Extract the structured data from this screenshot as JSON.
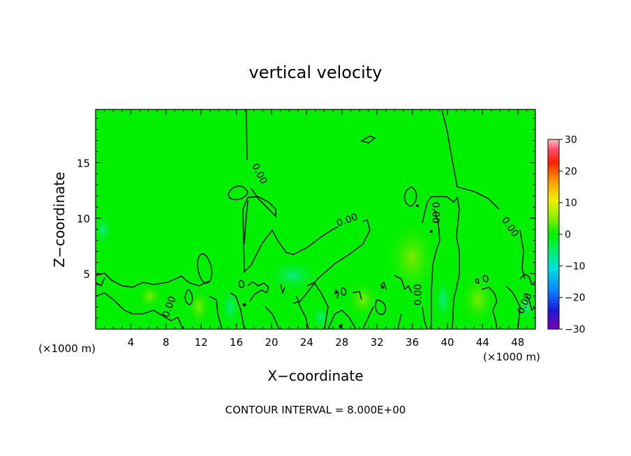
{
  "chart_data": {
    "type": "heatmap",
    "title": "vertical velocity",
    "xlabel": "X−coordinate",
    "ylabel": "Z−coordinate",
    "x_unit_left": "(×1000 m)",
    "x_unit_right": "(×1000 m)",
    "footer": "CONTOUR INTERVAL = 8.000E+00",
    "x_ticks": [
      "4",
      "8",
      "12",
      "16",
      "20",
      "24",
      "28",
      "32",
      "36",
      "40",
      "44",
      "48"
    ],
    "y_ticks": [
      "5",
      "10",
      "15"
    ],
    "colorbar_ticks": [
      "30",
      "20",
      "10",
      "0",
      "−10",
      "−20",
      "−30"
    ],
    "xlim": [
      0,
      50
    ],
    "ylim": [
      0,
      19.8
    ],
    "colorbar_range": [
      -30,
      30
    ],
    "contour_labels": [
      {
        "text": "0.00",
        "x": 18.6,
        "y": 14.0,
        "angle": 63
      },
      {
        "text": "0.00",
        "x": 28.6,
        "y": 9.8,
        "angle": -20
      },
      {
        "text": "0.00",
        "x": 38.6,
        "y": 10.5,
        "angle": 90
      },
      {
        "text": "0.00",
        "x": 47.1,
        "y": 9.2,
        "angle": 55
      },
      {
        "text": "0.00",
        "x": 8.4,
        "y": 2.0,
        "angle": -70
      },
      {
        "text": "0.00",
        "x": 36.7,
        "y": 3.1,
        "angle": -90
      },
      {
        "text": "0.00",
        "x": 48.8,
        "y": 2.3,
        "angle": -65
      }
    ],
    "background_value": 0
  }
}
